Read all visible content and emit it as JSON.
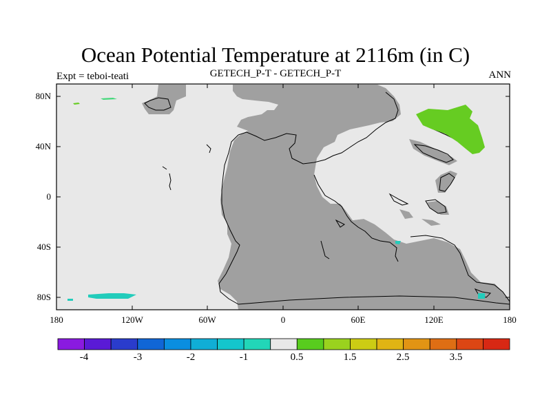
{
  "title": "Ocean Potential Temperature at 2116m (in C)",
  "left_string": "Expt = teboi-teati",
  "center_string": "GETECH_P-T - GETECH_P-T",
  "right_string": "ANN",
  "axes": {
    "lat_labels": [
      "80N",
      "40N",
      "0",
      "40S",
      "80S"
    ],
    "lon_labels": [
      "180",
      "120W",
      "60W",
      "0",
      "60E",
      "120E",
      "180"
    ]
  },
  "colors": {
    "land": "#a0a0a0",
    "ocean": "#e8e8e8",
    "coast": "#000000",
    "positive_anomaly": "#66cc22",
    "negative_anomaly": "#22ccbb"
  },
  "colorbar": {
    "colors": [
      "#8a1ae0",
      "#5a1ad6",
      "#2a3ccc",
      "#1066d6",
      "#0a8ee0",
      "#10aed6",
      "#14c6cc",
      "#22d6b8",
      "#e8e8e8",
      "#58cc1e",
      "#9ad21e",
      "#cccc14",
      "#e0b414",
      "#e29414",
      "#de6e14",
      "#dc4614",
      "#d82814"
    ],
    "labels": [
      "-4",
      "-3",
      "-2",
      "-1",
      "0.5",
      "1.5",
      "2.5",
      "3.5"
    ]
  }
}
